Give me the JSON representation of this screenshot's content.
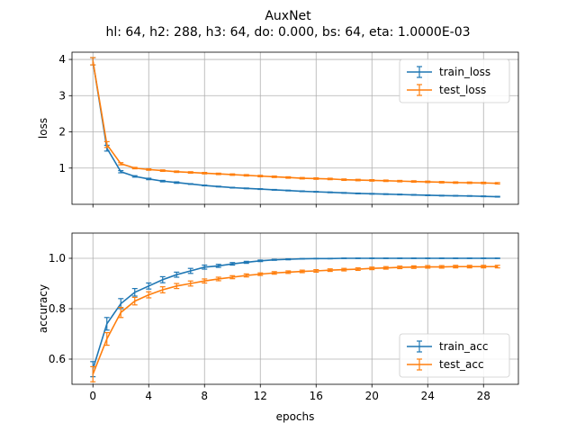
{
  "chart_data": {
    "type": "line",
    "title": "AuxNet",
    "subtitle": "hl: 64, h2: 288, h3: 64, do: 0.000, bs: 64, eta: 1.0000E-03",
    "xlabel": "epochs",
    "xlim": [
      -1.5,
      30.5
    ],
    "xticks": [
      "0",
      "4",
      "8",
      "12",
      "16",
      "20",
      "24",
      "28"
    ],
    "grid": true,
    "colors": {
      "train": "#1f77b4",
      "test": "#ff7f0e"
    },
    "panels": [
      {
        "name": "loss-panel",
        "ylabel": "loss",
        "ylim": [
          0.0,
          4.2
        ],
        "yticks": [
          "1",
          "2",
          "3",
          "4"
        ],
        "legend_placement": "top-right",
        "series": [
          {
            "name": "train_loss",
            "x": [
              0,
              1,
              2,
              3,
              4,
              5,
              6,
              7,
              8,
              9,
              10,
              11,
              12,
              13,
              14,
              15,
              16,
              17,
              18,
              19,
              20,
              21,
              22,
              23,
              24,
              25,
              26,
              27,
              28,
              29
            ],
            "values": [
              3.95,
              1.55,
              0.9,
              0.77,
              0.7,
              0.64,
              0.6,
              0.56,
              0.52,
              0.49,
              0.46,
              0.44,
              0.42,
              0.4,
              0.38,
              0.36,
              0.345,
              0.33,
              0.315,
              0.3,
              0.29,
              0.28,
              0.27,
              0.26,
              0.25,
              0.24,
              0.235,
              0.23,
              0.22,
              0.21
            ],
            "errors": [
              0.1,
              0.08,
              0.03,
              0.02,
              0.02,
              0.02,
              0.02,
              0.01,
              0.01,
              0.01,
              0.01,
              0.01,
              0.01,
              0.01,
              0.01,
              0.01,
              0.01,
              0.01,
              0.01,
              0.01,
              0.01,
              0.01,
              0.01,
              0.01,
              0.01,
              0.01,
              0.01,
              0.01,
              0.01,
              0.01
            ]
          },
          {
            "name": "test_loss",
            "x": [
              0,
              1,
              2,
              3,
              4,
              5,
              6,
              7,
              8,
              9,
              10,
              11,
              12,
              13,
              14,
              15,
              16,
              17,
              18,
              19,
              20,
              21,
              22,
              23,
              24,
              25,
              26,
              27,
              28,
              29
            ],
            "values": [
              3.95,
              1.65,
              1.12,
              1.0,
              0.96,
              0.93,
              0.9,
              0.88,
              0.86,
              0.84,
              0.82,
              0.8,
              0.78,
              0.76,
              0.74,
              0.72,
              0.71,
              0.7,
              0.68,
              0.67,
              0.66,
              0.65,
              0.64,
              0.63,
              0.62,
              0.61,
              0.6,
              0.595,
              0.59,
              0.58
            ],
            "errors": [
              0.1,
              0.08,
              0.03,
              0.02,
              0.02,
              0.02,
              0.02,
              0.02,
              0.02,
              0.02,
              0.02,
              0.02,
              0.02,
              0.02,
              0.02,
              0.02,
              0.02,
              0.02,
              0.02,
              0.02,
              0.02,
              0.02,
              0.02,
              0.02,
              0.02,
              0.02,
              0.02,
              0.02,
              0.02,
              0.02
            ]
          }
        ]
      },
      {
        "name": "accuracy-panel",
        "ylabel": "accuracy",
        "ylim": [
          0.5,
          1.1
        ],
        "yticks": [
          "0.6",
          "0.8",
          "1.0"
        ],
        "legend_placement": "bottom-right",
        "series": [
          {
            "name": "train_acc",
            "x": [
              0,
              1,
              2,
              3,
              4,
              5,
              6,
              7,
              8,
              9,
              10,
              11,
              12,
              13,
              14,
              15,
              16,
              17,
              18,
              19,
              20,
              21,
              22,
              23,
              24,
              25,
              26,
              27,
              28,
              29
            ],
            "values": [
              0.56,
              0.74,
              0.82,
              0.865,
              0.89,
              0.915,
              0.935,
              0.95,
              0.965,
              0.97,
              0.978,
              0.984,
              0.99,
              0.994,
              0.996,
              0.998,
              0.999,
              0.999,
              1.0,
              1.0,
              1.0,
              1.0,
              1.0,
              1.0,
              1.0,
              1.0,
              1.0,
              1.0,
              1.0,
              1.0
            ],
            "errors": [
              0.03,
              0.025,
              0.02,
              0.015,
              0.012,
              0.012,
              0.01,
              0.01,
              0.008,
              0.006,
              0.005,
              0.004,
              0.003,
              0.002,
              0.002,
              0.001,
              0.001,
              0.001,
              0.001,
              0.001,
              0.001,
              0.001,
              0.001,
              0.001,
              0.001,
              0.001,
              0.001,
              0.001,
              0.001,
              0.001
            ]
          },
          {
            "name": "test_acc",
            "x": [
              0,
              1,
              2,
              3,
              4,
              5,
              6,
              7,
              8,
              9,
              10,
              11,
              12,
              13,
              14,
              15,
              16,
              17,
              18,
              19,
              20,
              21,
              22,
              23,
              24,
              25,
              26,
              27,
              28,
              29
            ],
            "values": [
              0.54,
              0.68,
              0.785,
              0.83,
              0.855,
              0.875,
              0.89,
              0.9,
              0.91,
              0.918,
              0.925,
              0.932,
              0.937,
              0.942,
              0.945,
              0.948,
              0.95,
              0.953,
              0.955,
              0.957,
              0.96,
              0.962,
              0.964,
              0.965,
              0.966,
              0.966,
              0.967,
              0.967,
              0.967,
              0.967
            ],
            "errors": [
              0.03,
              0.025,
              0.02,
              0.015,
              0.012,
              0.012,
              0.01,
              0.01,
              0.008,
              0.007,
              0.006,
              0.006,
              0.005,
              0.005,
              0.005,
              0.005,
              0.005,
              0.005,
              0.005,
              0.005,
              0.005,
              0.005,
              0.005,
              0.005,
              0.005,
              0.005,
              0.005,
              0.005,
              0.005,
              0.005
            ]
          }
        ]
      }
    ]
  }
}
